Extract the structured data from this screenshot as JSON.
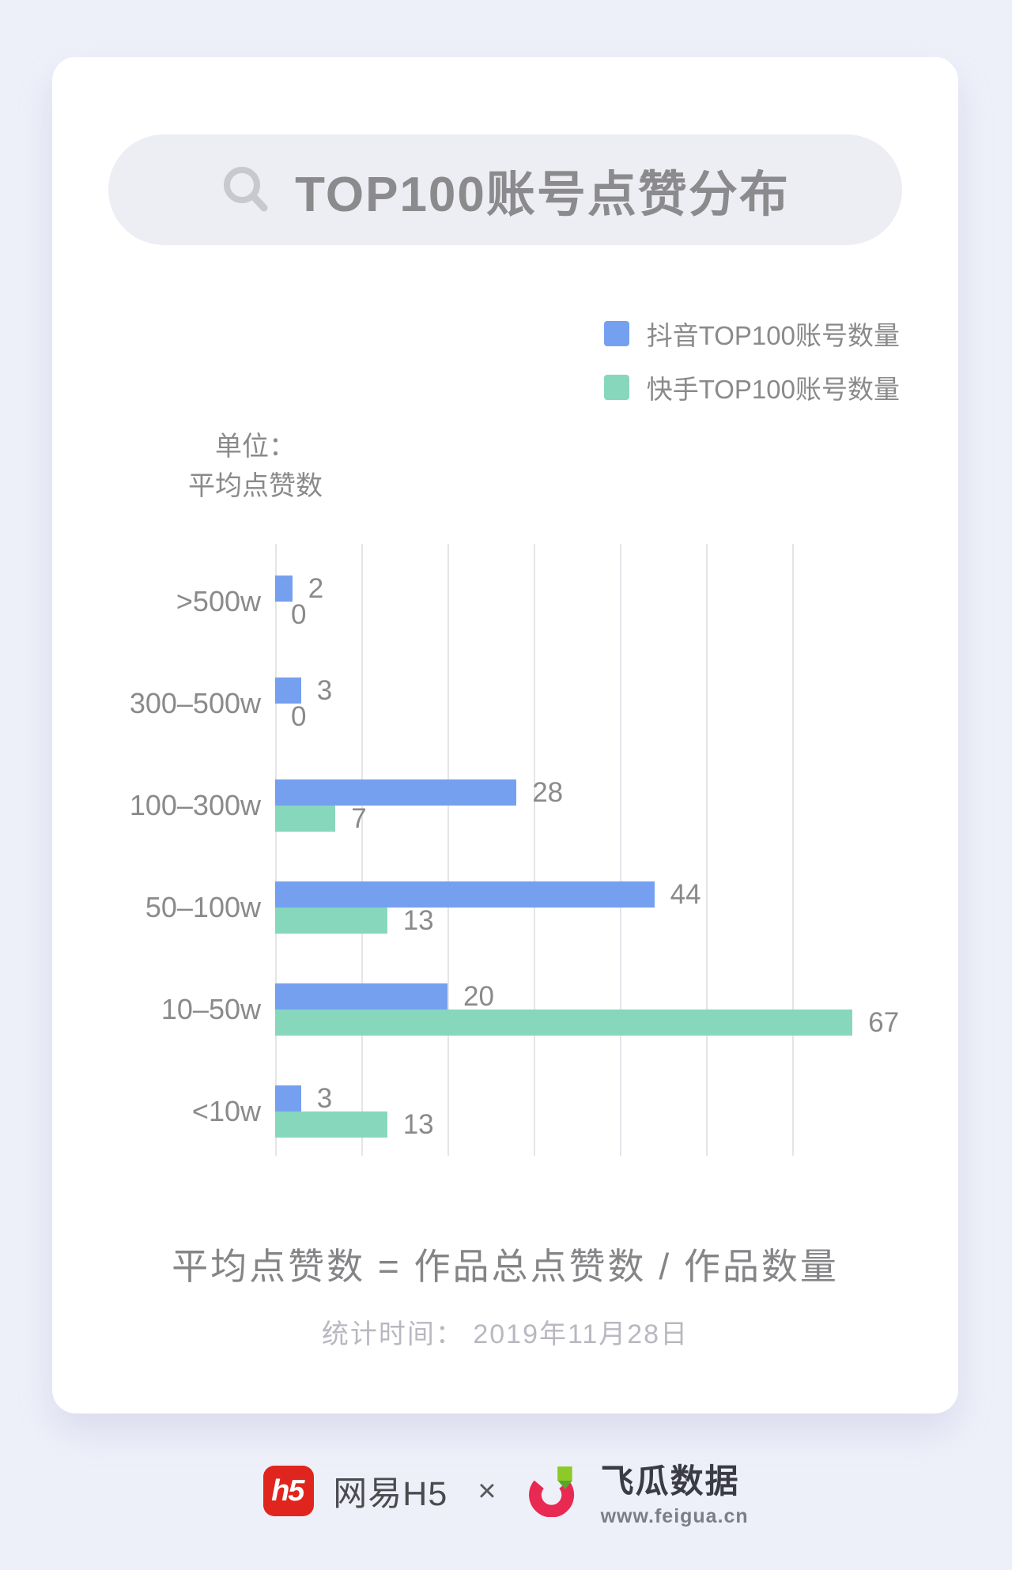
{
  "header": {
    "title": "TOP100账号点赞分布"
  },
  "legend": [
    {
      "label": "抖音TOP100账号数量",
      "color": "#75a0f0"
    },
    {
      "label": "快手TOP100账号数量",
      "color": "#87d7bd"
    }
  ],
  "unit_label": {
    "line1": "单位：",
    "line2": "平均点赞数"
  },
  "chart_data": {
    "type": "bar",
    "orientation": "horizontal",
    "title": "TOP100账号点赞分布",
    "unit": "单位：平均点赞数",
    "categories": [
      ">500w",
      "300–500w",
      "100–300w",
      "50–100w",
      "10–50w",
      "<10w"
    ],
    "series": [
      {
        "key": "douyin",
        "name": "抖音TOP100账号数量",
        "color": "#75a0f0",
        "values": [
          2,
          3,
          28,
          44,
          20,
          3
        ]
      },
      {
        "key": "kuaishou",
        "name": "快手TOP100账号数量",
        "color": "#87d7bd",
        "values": [
          0,
          0,
          7,
          13,
          67,
          13
        ]
      }
    ],
    "value_axis": {
      "min": 0,
      "max": 60,
      "interval": 10,
      "gridlines_visible": true
    },
    "value_labels_visible": true,
    "legend_position": "top-right"
  },
  "footer": {
    "formula": "平均点赞数 = 作品总点赞数 / 作品数量",
    "stats_time": "统计时间： 2019年11月28日"
  },
  "branding": {
    "netease": {
      "logo_text": "h5",
      "name": "网易H5"
    },
    "separator": "×",
    "feigua": {
      "name": "飞瓜数据",
      "url": "www.feigua.cn"
    }
  },
  "colors": {
    "page_background": "#eef0f9",
    "card_background": "#ffffff",
    "pill_background": "#ededf4",
    "title_text": "#8b8b8d",
    "label_text": "#8a8a8a",
    "gridline": "#e4e4e9",
    "douyin_blue": "#75a0f0",
    "kuaishou_green": "#87d7bd",
    "formula_text": "#858588",
    "stats_text": "#b8b8c1",
    "netease_red": "#e0251f",
    "feigua_pink": "#e82952",
    "feigua_green": "#8dc927",
    "feigua_green_dark": "#55a82b",
    "search_icon": "#c8c8ce"
  }
}
